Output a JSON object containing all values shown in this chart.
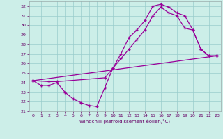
{
  "xlabel": "Windchill (Refroidissement éolien,°C)",
  "background_color": "#cceee8",
  "grid_color": "#99cccc",
  "line_color": "#990099",
  "xlim": [
    -0.5,
    23.5
  ],
  "ylim": [
    21,
    32.5
  ],
  "yticks": [
    21,
    22,
    23,
    24,
    25,
    26,
    27,
    28,
    29,
    30,
    31,
    32
  ],
  "xticks": [
    0,
    1,
    2,
    3,
    4,
    5,
    6,
    7,
    8,
    9,
    10,
    11,
    12,
    13,
    14,
    15,
    16,
    17,
    18,
    19,
    20,
    21,
    22,
    23
  ],
  "line1_x": [
    0,
    1,
    2,
    3,
    4,
    5,
    6,
    7,
    8,
    9,
    10,
    11,
    12,
    13,
    14,
    15,
    16,
    17,
    18,
    19,
    20,
    21,
    22,
    23
  ],
  "line1_y": [
    24.2,
    23.7,
    23.7,
    24.0,
    23.0,
    22.3,
    21.9,
    21.6,
    21.5,
    23.5,
    25.5,
    27.0,
    28.7,
    29.5,
    30.5,
    32.0,
    32.2,
    31.9,
    31.3,
    31.0,
    29.5,
    27.5,
    26.8,
    26.8
  ],
  "line2_x": [
    0,
    2,
    3,
    9,
    10,
    11,
    12,
    13,
    14,
    15,
    16,
    17,
    18,
    19,
    20,
    21,
    22,
    23
  ],
  "line2_y": [
    24.2,
    24.1,
    24.1,
    24.5,
    25.5,
    26.5,
    27.5,
    28.5,
    29.5,
    31.0,
    31.9,
    31.3,
    31.0,
    29.7,
    29.5,
    27.5,
    26.8,
    26.8
  ],
  "line3_x": [
    0,
    23
  ],
  "line3_y": [
    24.2,
    26.8
  ]
}
